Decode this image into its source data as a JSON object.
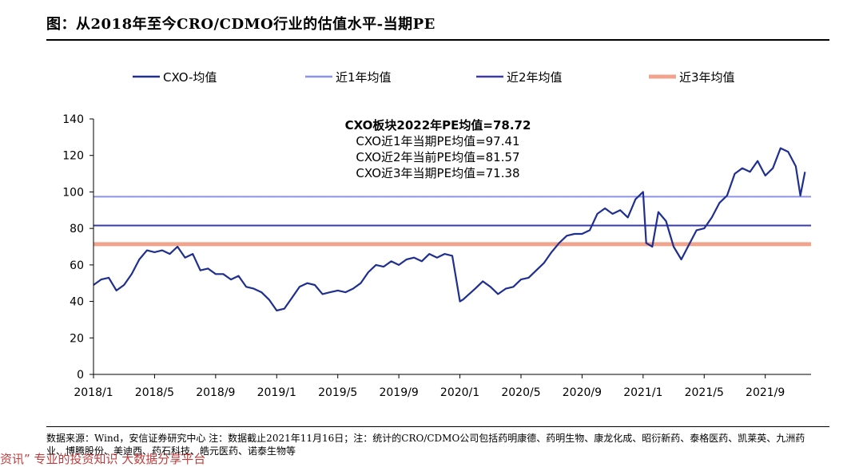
{
  "figure_title": "图：从2018年至今CRO/CDMO行业的估值水平-当期PE",
  "source_note": "数据来源：Wind，安信证券研究中心      注：数据截止2021年11月16日；注：统计的CRO/CDMO公司包括药明康德、药明生物、康龙化成、昭衍新药、泰格医药、凯莱英、九洲药业、博腾股份、美迪西、药石科技、皓元医药、诺泰生物等",
  "overlay_text": "资讯” 专业的投资知识 大数据分享平台",
  "chart_data": {
    "type": "line",
    "title": "",
    "xlabel": "",
    "ylabel": "",
    "ylim": [
      0,
      140
    ],
    "yticks": [
      0,
      20,
      40,
      60,
      80,
      100,
      120,
      140
    ],
    "xlim": [
      "2018/1",
      "2021/12"
    ],
    "xticks": [
      "2018/1",
      "2018/5",
      "2018/9",
      "2019/1",
      "2019/5",
      "2019/9",
      "2020/1",
      "2020/5",
      "2020/9",
      "2021/1",
      "2021/5",
      "2021/9"
    ],
    "grid": false,
    "legend_position": "top",
    "annotation": {
      "bold_line": "CXO板块2022年PE均值=78.72",
      "lines": [
        "CXO近1年当期PE均值=97.41",
        "CXO近2年当前PE均值=81.57",
        "CXO近3年当期PE均值=71.38"
      ]
    },
    "series": [
      {
        "name": "CXO-均值",
        "color": "#1f2f8f",
        "x": [
          "2018/1",
          "2018/1.5",
          "2018/2",
          "2018/2.5",
          "2018/3",
          "2018/3.5",
          "2018/4",
          "2018/4.5",
          "2018/5",
          "2018/5.5",
          "2018/6",
          "2018/6.5",
          "2018/7",
          "2018/7.5",
          "2018/8",
          "2018/8.5",
          "2018/9",
          "2018/9.5",
          "2018/10",
          "2018/10.5",
          "2018/11",
          "2018/11.5",
          "2018/12",
          "2018/12.5",
          "2019/1",
          "2019/1.5",
          "2019/2",
          "2019/2.5",
          "2019/3",
          "2019/3.5",
          "2019/4",
          "2019/4.5",
          "2019/5",
          "2019/5.5",
          "2019/6",
          "2019/6.5",
          "2019/7",
          "2019/7.5",
          "2019/8",
          "2019/8.5",
          "2019/9",
          "2019/9.5",
          "2019/10",
          "2019/10.5",
          "2019/11",
          "2019/11.5",
          "2019/12",
          "2019/12.5",
          "2020/1",
          "2020/1.2",
          "2020/2",
          "2020/2.5",
          "2020/3",
          "2020/3.5",
          "2020/4",
          "2020/4.5",
          "2020/5",
          "2020/5.5",
          "2020/6",
          "2020/6.5",
          "2020/7",
          "2020/7.5",
          "2020/8",
          "2020/8.5",
          "2020/9",
          "2020/9.5",
          "2020/10",
          "2020/10.5",
          "2020/11",
          "2020/11.5",
          "2020/12",
          "2020/12.5",
          "2021/1",
          "2021/1.2",
          "2021/1.6",
          "2021/2",
          "2021/2.5",
          "2021/3",
          "2021/3.5",
          "2021/4",
          "2021/4.5",
          "2021/5",
          "2021/5.5",
          "2021/6",
          "2021/6.5",
          "2021/7",
          "2021/7.5",
          "2021/8",
          "2021/8.5",
          "2021/9",
          "2021/9.5",
          "2021/10",
          "2021/10.5",
          "2021/11",
          "2021/11.3",
          "2021/11.6"
        ],
        "values": [
          49,
          52,
          53,
          46,
          49,
          55,
          63,
          68,
          67,
          68,
          66,
          70,
          64,
          66,
          57,
          58,
          55,
          55,
          52,
          54,
          48,
          47,
          45,
          41,
          35,
          36,
          42,
          48,
          50,
          49,
          44,
          45,
          46,
          45,
          47,
          50,
          56,
          60,
          59,
          62,
          60,
          63,
          64,
          62,
          66,
          64,
          66,
          65,
          40,
          41,
          47,
          51,
          48,
          44,
          47,
          48,
          52,
          53,
          57,
          61,
          67,
          72,
          76,
          77,
          77,
          79,
          88,
          91,
          88,
          90,
          86,
          96,
          100,
          72,
          70,
          89,
          84,
          70,
          63,
          71,
          79,
          80,
          86,
          94,
          98,
          110,
          113,
          111,
          117,
          109,
          113,
          124,
          122,
          114,
          98,
          111
        ]
      },
      {
        "name": "近1年均值",
        "color": "#8a92ee",
        "value": 97.41
      },
      {
        "name": "近2年均值",
        "color": "#3a3aa8",
        "value": 81.57
      },
      {
        "name": "近3年均值",
        "color": "#f0a48e",
        "value": 71.38
      }
    ]
  }
}
